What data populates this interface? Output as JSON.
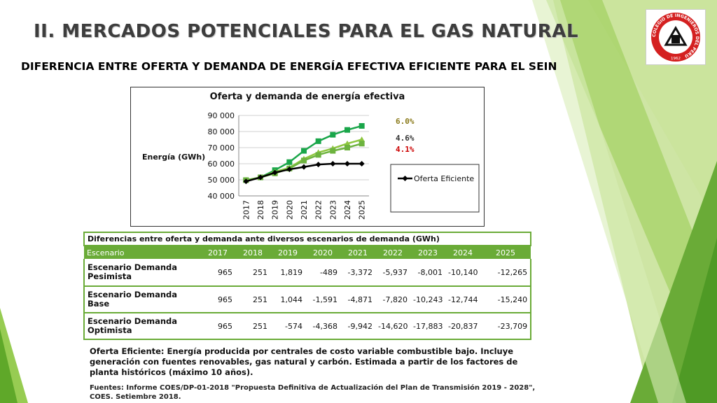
{
  "page": {
    "title": "II. MERCADOS POTENCIALES PARA EL GAS NATURAL",
    "subtitle": "DIFERENCIA ENTRE OFERTA Y DEMANDA DE ENERGÍA EFECTIVA EFICIENTE PARA EL SEIN"
  },
  "logo": {
    "ring_text": "COLEGIO DE INGENIEROS DEL PERU",
    "year": "1962",
    "colors": {
      "ring": "#d42020",
      "center": "#ffffff",
      "emblem": "#111111"
    }
  },
  "chart_data": {
    "type": "line",
    "title": "Oferta y demanda de energía efectiva",
    "ylabel": "Energía (GWh)",
    "xlabel": "",
    "categories": [
      "2017",
      "2018",
      "2019",
      "2020",
      "2021",
      "2022",
      "2023",
      "2024",
      "2025"
    ],
    "ylim": [
      40000,
      90000
    ],
    "yticks": [
      "90 000",
      "80 000",
      "70 000",
      "60 000",
      "50 000",
      "40 000"
    ],
    "grid": true,
    "series": [
      {
        "name": "Oferta Eficiente",
        "color": "#000000",
        "marker": "diamond",
        "values": [
          49000,
          51500,
          54500,
          56500,
          58000,
          59500,
          60000,
          60000,
          60000
        ]
      },
      {
        "name": "",
        "color": "#1aa64a",
        "marker": "square",
        "values": [
          49800,
          51500,
          56000,
          61000,
          68000,
          74000,
          78000,
          81000,
          83500
        ]
      },
      {
        "name": "",
        "color": "#8dc63f",
        "marker": "triangle",
        "values": [
          49800,
          51500,
          55000,
          57500,
          63000,
          67000,
          69500,
          72500,
          75000
        ]
      },
      {
        "name": "",
        "color": "#6db33f",
        "marker": "square",
        "values": [
          49800,
          51500,
          54000,
          57000,
          62000,
          65500,
          68000,
          70000,
          72500
        ]
      }
    ],
    "annotations": [
      {
        "text": "6.0%",
        "color": "#8a7a1a"
      },
      {
        "text": "4.6%",
        "color": "#333333"
      },
      {
        "text": "4.1%",
        "color": "#cc0000"
      }
    ],
    "legend": {
      "label": "Oferta Eficiente",
      "placement": "right"
    }
  },
  "table": {
    "caption": "Diferencias entre oferta y demanda ante diversos escenarios de demanda (GWh)",
    "headers": [
      "Escenario",
      "2017",
      "2018",
      "2019",
      "2020",
      "2021",
      "2022",
      "2023",
      "2024",
      "2025"
    ],
    "rows": [
      [
        "Escenario Demanda Pesimista",
        "965",
        "251",
        "1,819",
        "-489",
        "-3,372",
        "-5,937",
        "-8,001",
        "-10,140",
        "-12,265"
      ],
      [
        "Escenario Demanda Base",
        "965",
        "251",
        "1,044",
        "-1,591",
        "-4,871",
        "-7,820",
        "-10,243",
        "-12,744",
        "-15,240"
      ],
      [
        "Escenario Demanda Optimista",
        "965",
        "251",
        "-574",
        "-4,368",
        "-9,942",
        "-14,620",
        "-17,883",
        "-20,837",
        "-23,709"
      ]
    ]
  },
  "footer": {
    "note": "Oferta Eficiente: Energía producida por centrales de costo variable combustible bajo. Incluye generación con fuentes renovables, gas natural y carbón. Estimada a partir de los factores de planta históricos (máximo 10 años).",
    "source": "Fuentes: Informe COES/DP-01-2018 \"Propuesta Definitiva de Actualización del Plan de Transmisión 2019 - 2028\", COES. Setiembre 2018."
  },
  "theme": {
    "accent": "#6aab37",
    "accent_light": "#a6cf5a",
    "accent_pale": "#c9e39a"
  }
}
